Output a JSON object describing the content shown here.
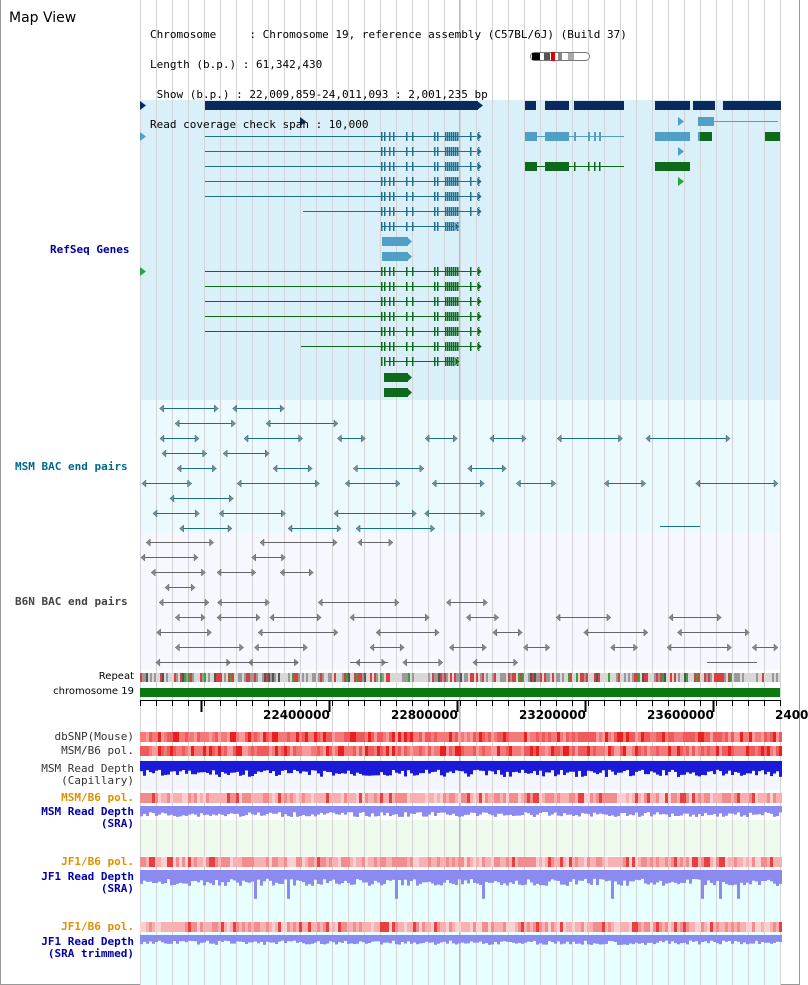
{
  "header": {
    "title": "Map View",
    "info_lines": [
      "Chromosome     : Chromosome 19, reference assembly (C57BL/6J) (Build 37)",
      "Length (b.p.) : 61,342,430",
      " Show (b.p.) : 22,009,859-24,011,093 : 2,001,235 bp",
      "Read coverage check span : 10,000"
    ]
  },
  "tracks": {
    "refseq": {
      "label": "RefSeq Genes",
      "color": "#000099"
    },
    "msm_bac": {
      "label": "MSM BAC end pairs",
      "color": "#006a8a"
    },
    "b6n_bac": {
      "label": "B6N BAC end pairs",
      "color": "#444444"
    },
    "repeat": {
      "label": "Repeat"
    },
    "chrom": {
      "label": "chromosome 19"
    },
    "dbsnp": {
      "label": "dbSNP(Mouse)"
    },
    "msm_b6_pol": {
      "label": "MSM/B6 pol."
    },
    "msm_depth_cap": {
      "label": "MSM Read Depth\n(Capillary)"
    },
    "msm_b6_pol2": {
      "label": "MSM/B6 pol."
    },
    "msm_depth_sra": {
      "label": "MSM Read Depth\n(SRA)"
    },
    "jf1_b6_pol": {
      "label": "JF1/B6 pol."
    },
    "jf1_depth_sra": {
      "label": "JF1 Read Depth\n(SRA)"
    },
    "jf1_b6_pol2": {
      "label": "JF1/B6 pol."
    },
    "jf1_depth_trim": {
      "label": "JF1 Read Depth\n(SRA trimmed)"
    }
  },
  "ruler": {
    "ticks": [
      "22400000",
      "22800000",
      "23200000",
      "23600000",
      "2400"
    ]
  },
  "colors": {
    "refseq_bg": "#d9f0fb",
    "msm_bg": "#eafaff",
    "b6n_bg": "#f7f7ff",
    "gene_navy": "#0a2a5e",
    "gene_blue": "#4f9fc6",
    "gene_green": "#0c6a1a",
    "chrom_green": "#0a7a10",
    "depth_blue": "#1a1ad8",
    "depth_light": "#8a8af0",
    "pol_red": "#f05050",
    "pol_light": "#f8b0b0",
    "orange_label": "#e09000"
  }
}
